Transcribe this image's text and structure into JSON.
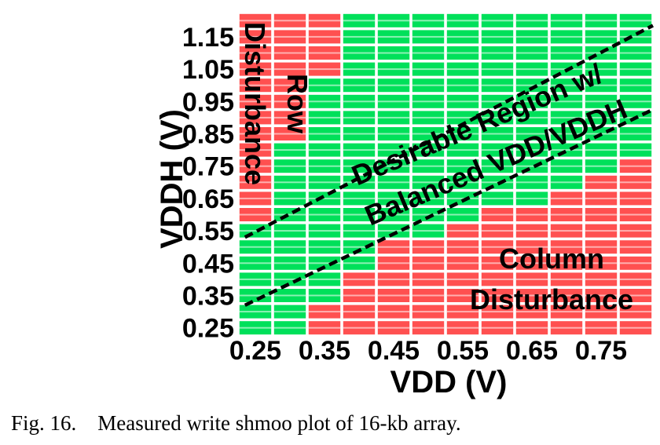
{
  "chart_data": {
    "type": "heatmap",
    "title": "",
    "xlabel": "VDD (V)",
    "ylabel": "VDDH (V)",
    "x": [
      0.25,
      0.3,
      0.35,
      0.4,
      0.45,
      0.5,
      0.55,
      0.6,
      0.65,
      0.7,
      0.75,
      0.8
    ],
    "y": [
      0.25,
      0.3,
      0.35,
      0.4,
      0.45,
      0.5,
      0.55,
      0.6,
      0.65,
      0.7,
      0.75,
      0.8,
      0.85,
      0.9,
      0.95,
      1.0,
      1.05,
      1.1,
      1.15,
      1.2
    ],
    "x_tick_labels": [
      "0.25",
      "0.35",
      "0.45",
      "0.55",
      "0.65",
      "0.75"
    ],
    "y_tick_labels": [
      "0.25",
      "0.35",
      "0.45",
      "0.55",
      "0.65",
      "0.75",
      "0.85",
      "0.95",
      "1.05",
      "1.15"
    ],
    "pass_fail_by_row_from_top": [
      "FFFPPPPPPPPP",
      "FFFPPPPPPPPP",
      "FFFPPPPPPPPP",
      "FFFPPPPPPPPP",
      "FFPPPPPPPPPP",
      "FFPPPPPPPPPP",
      "FFPPPPPPPPPP",
      "FFPPPPPPPPPP",
      "FPPPPPPPPPPP",
      "FPPPPPPPPPPF",
      "FPPPPPPPPPFF",
      "FPPPPPPPPFFF",
      "FPPPPPPFFFFF",
      "PPPPPPFFFFFF",
      "PPPPFFFFFFFF",
      "PPPPFFFFFFFF",
      "PPPFFFFFFFFF",
      "PPPFFFFFFFFF",
      "PPFFFFFFFFFF",
      "PPFFFFFFFFFF"
    ],
    "legend_codes": {
      "P": "pass",
      "F": "fail"
    },
    "colors": {
      "pass": "#00e05a",
      "fail": "#ff5050",
      "grid": "#ffffff"
    },
    "regions": [
      {
        "lines": [
          "Row",
          "Disturbance"
        ],
        "side": "upper-left"
      },
      {
        "lines": [
          "Desirable Region w/",
          "Balanced VDD/VDDH"
        ],
        "side": "diagonal"
      },
      {
        "lines": [
          "Column",
          "Disturbance"
        ],
        "side": "lower-right"
      }
    ],
    "boundary_lines": [
      {
        "from": [
          0.235,
          0.53
        ],
        "to": [
          0.825,
          1.185
        ]
      },
      {
        "from": [
          0.235,
          0.32
        ],
        "to": [
          0.825,
          0.925
        ]
      }
    ],
    "x_range": [
      0.225,
      0.825
    ],
    "y_range": [
      0.225,
      1.225
    ]
  },
  "caption": {
    "label": "Fig. 16.",
    "text": "Measured write shmoo plot of 16-kb array."
  }
}
